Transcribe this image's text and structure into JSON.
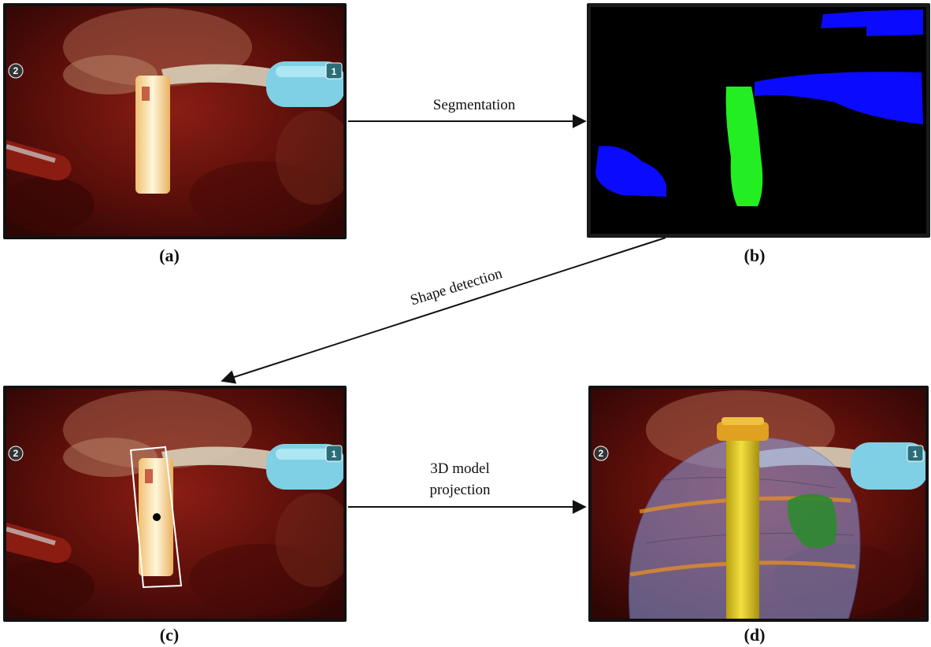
{
  "panels": {
    "a": {
      "caption": "(a)"
    },
    "b": {
      "caption": "(b)"
    },
    "c": {
      "caption": "(c)"
    },
    "d": {
      "caption": "(d)"
    }
  },
  "steps": {
    "segmentation": "Segmentation",
    "shape_detection": "Shape detection",
    "projection_line1": "3D model",
    "projection_line2": "projection"
  },
  "hud": {
    "left_marker": "2",
    "right_marker": "1"
  },
  "colors": {
    "segment_tool": "#0a0aff",
    "segment_probe": "#22ee22",
    "frame": "#111111",
    "tissue": "#5a0f0a",
    "instrument_tip": "#7fd0e4",
    "model_cylinder": "#e6d21e",
    "model_sphere": "#8aa0e6"
  }
}
